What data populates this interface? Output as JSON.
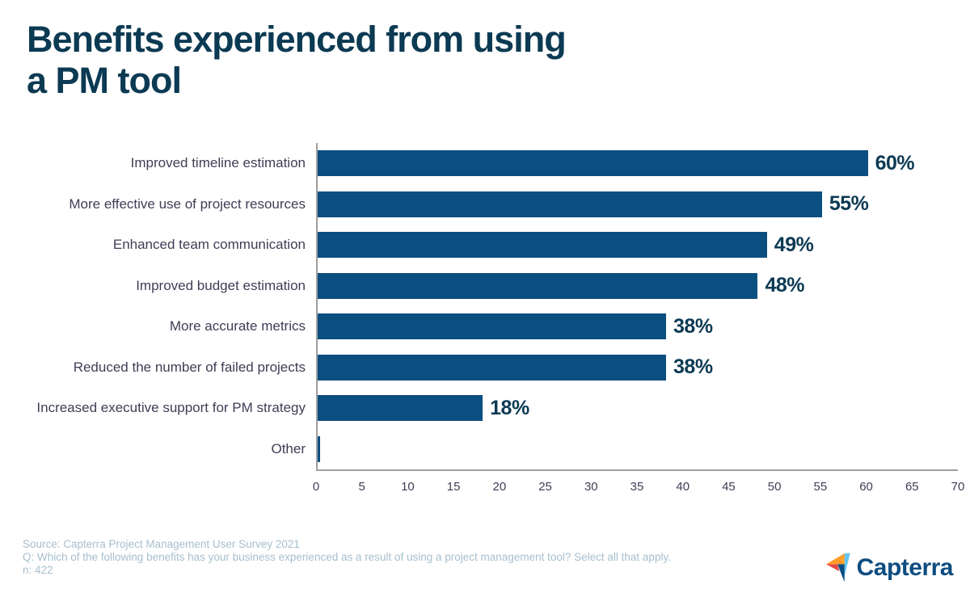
{
  "title_lines": [
    "Benefits experienced from using",
    "a PM tool"
  ],
  "chart_data": {
    "type": "bar",
    "orientation": "horizontal",
    "title": "Benefits experienced from using a PM tool",
    "categories": [
      "Improved timeline estimation",
      "More effective use of project resources",
      "Enhanced team communication",
      "Improved budget estimation",
      "More accurate metrics",
      "Reduced the number of failed projects",
      "Increased executive support for PM strategy",
      "Other"
    ],
    "values": [
      60,
      55,
      49,
      48,
      38,
      38,
      18,
      0.3
    ],
    "value_labels": [
      "60%",
      "55%",
      "49%",
      "48%",
      "38%",
      "38%",
      "18%",
      ""
    ],
    "xlabel": "",
    "ylabel": "",
    "xlim": [
      0,
      70
    ],
    "x_ticks": [
      0,
      5,
      10,
      15,
      20,
      25,
      30,
      35,
      40,
      45,
      50,
      55,
      60,
      65,
      70
    ],
    "grid": false,
    "legend": false,
    "bar_color": "#0b4e80",
    "axis_color": "#9e9e9e",
    "label_color": "#3f3d56",
    "value_label_color": "#0c3a53"
  },
  "footer": {
    "source": "Source: Capterra Project Management User Survey 2021",
    "question": "Q: Which of the following benefits has your business experienced as a result of using a project management tool? Select all that apply.",
    "sample": "n: 422"
  },
  "logo": {
    "text": "Capterra",
    "colors": {
      "orange": "#FF9D28",
      "light_blue": "#68C5ED",
      "dark_blue": "#044D80",
      "red": "#E54747",
      "wordmark": "#0e4d80"
    }
  }
}
